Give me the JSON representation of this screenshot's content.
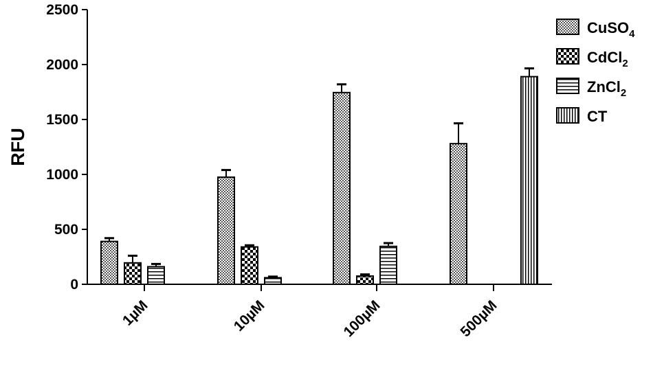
{
  "chart_data": {
    "type": "bar",
    "ylabel": "RFU",
    "xlabel": "",
    "title": "",
    "ylim": [
      0,
      2500
    ],
    "yticks": [
      "0",
      "500",
      "1000",
      "1500",
      "2000",
      "2500"
    ],
    "categories": [
      "1µM",
      "10µM",
      "100µM",
      "500µM"
    ],
    "legend_position": "top-right",
    "series": [
      {
        "name": "CuSO",
        "name_sub": "4",
        "pattern": "dense-checker",
        "values": [
          390,
          975,
          1745,
          1280
        ],
        "errors": [
          30,
          65,
          75,
          185
        ]
      },
      {
        "name": "CdCl",
        "name_sub": "2",
        "pattern": "coarse-checker",
        "values": [
          195,
          340,
          75,
          null
        ],
        "errors": [
          65,
          15,
          15,
          null
        ]
      },
      {
        "name": "ZnCl",
        "name_sub": "2",
        "pattern": "horizontal-lines",
        "values": [
          160,
          60,
          345,
          null
        ],
        "errors": [
          25,
          10,
          30,
          null
        ]
      },
      {
        "name": "CT",
        "name_sub": "",
        "pattern": "vertical-lines",
        "values": [
          null,
          null,
          null,
          1890
        ],
        "errors": [
          null,
          null,
          null,
          75
        ]
      }
    ]
  }
}
